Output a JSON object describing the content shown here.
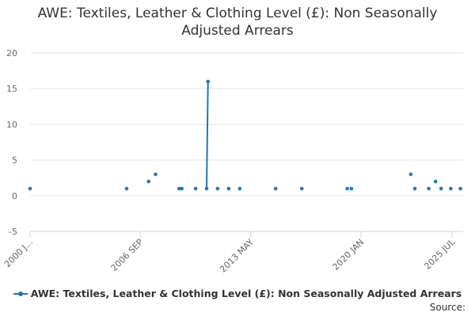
{
  "chart_data": {
    "type": "line",
    "title": "AWE: Textiles, Leather & Clothing Level (£): Non Seasonally Adjusted Arrears",
    "xlabel": "",
    "ylabel": "",
    "ylim": [
      -5,
      20
    ],
    "yticks": [
      -5,
      0,
      5,
      10,
      15,
      20
    ],
    "grid": true,
    "legend_position": "bottom",
    "x_tick_labels": [
      "2000 J...",
      "2006 SEP",
      "2013 MAY",
      "2020 JAN",
      "2025 JUL"
    ],
    "x_tick_dates": [
      "2000-01",
      "2006-09",
      "2013-05",
      "2020-01",
      "2025-07"
    ],
    "series": [
      {
        "name": "AWE: Textiles, Leather & Clothing Level (£): Non Seasonally Adjusted Arrears",
        "color": "#1f77b4",
        "points": [
          {
            "x": "2000-01",
            "y": 1
          },
          {
            "x": "2005-11",
            "y": 1
          },
          {
            "x": "2007-03",
            "y": 2
          },
          {
            "x": "2007-08",
            "y": 3
          },
          {
            "x": "2009-01",
            "y": 1
          },
          {
            "x": "2009-03",
            "y": 1
          },
          {
            "x": "2010-01",
            "y": 1
          },
          {
            "x": "2010-09",
            "y": 1
          },
          {
            "x": "2010-10",
            "y": 16
          },
          {
            "x": "2011-05",
            "y": 1
          },
          {
            "x": "2012-01",
            "y": 1
          },
          {
            "x": "2012-09",
            "y": 1
          },
          {
            "x": "2014-11",
            "y": 1
          },
          {
            "x": "2016-06",
            "y": 1
          },
          {
            "x": "2019-03",
            "y": 1
          },
          {
            "x": "2019-06",
            "y": 1
          },
          {
            "x": "2023-01",
            "y": 3
          },
          {
            "x": "2023-04",
            "y": 1
          },
          {
            "x": "2024-02",
            "y": 1
          },
          {
            "x": "2024-07",
            "y": 2
          },
          {
            "x": "2024-11",
            "y": 1
          },
          {
            "x": "2025-06",
            "y": 1
          },
          {
            "x": "2026-01",
            "y": 1
          }
        ],
        "connected_segments": [
          [
            "2010-09",
            "2010-10"
          ]
        ]
      }
    ]
  },
  "legend": {
    "label": "AWE: Textiles, Leather & Clothing Level (£): Non Seasonally Adjusted Arrears"
  },
  "source_label": "Source:"
}
